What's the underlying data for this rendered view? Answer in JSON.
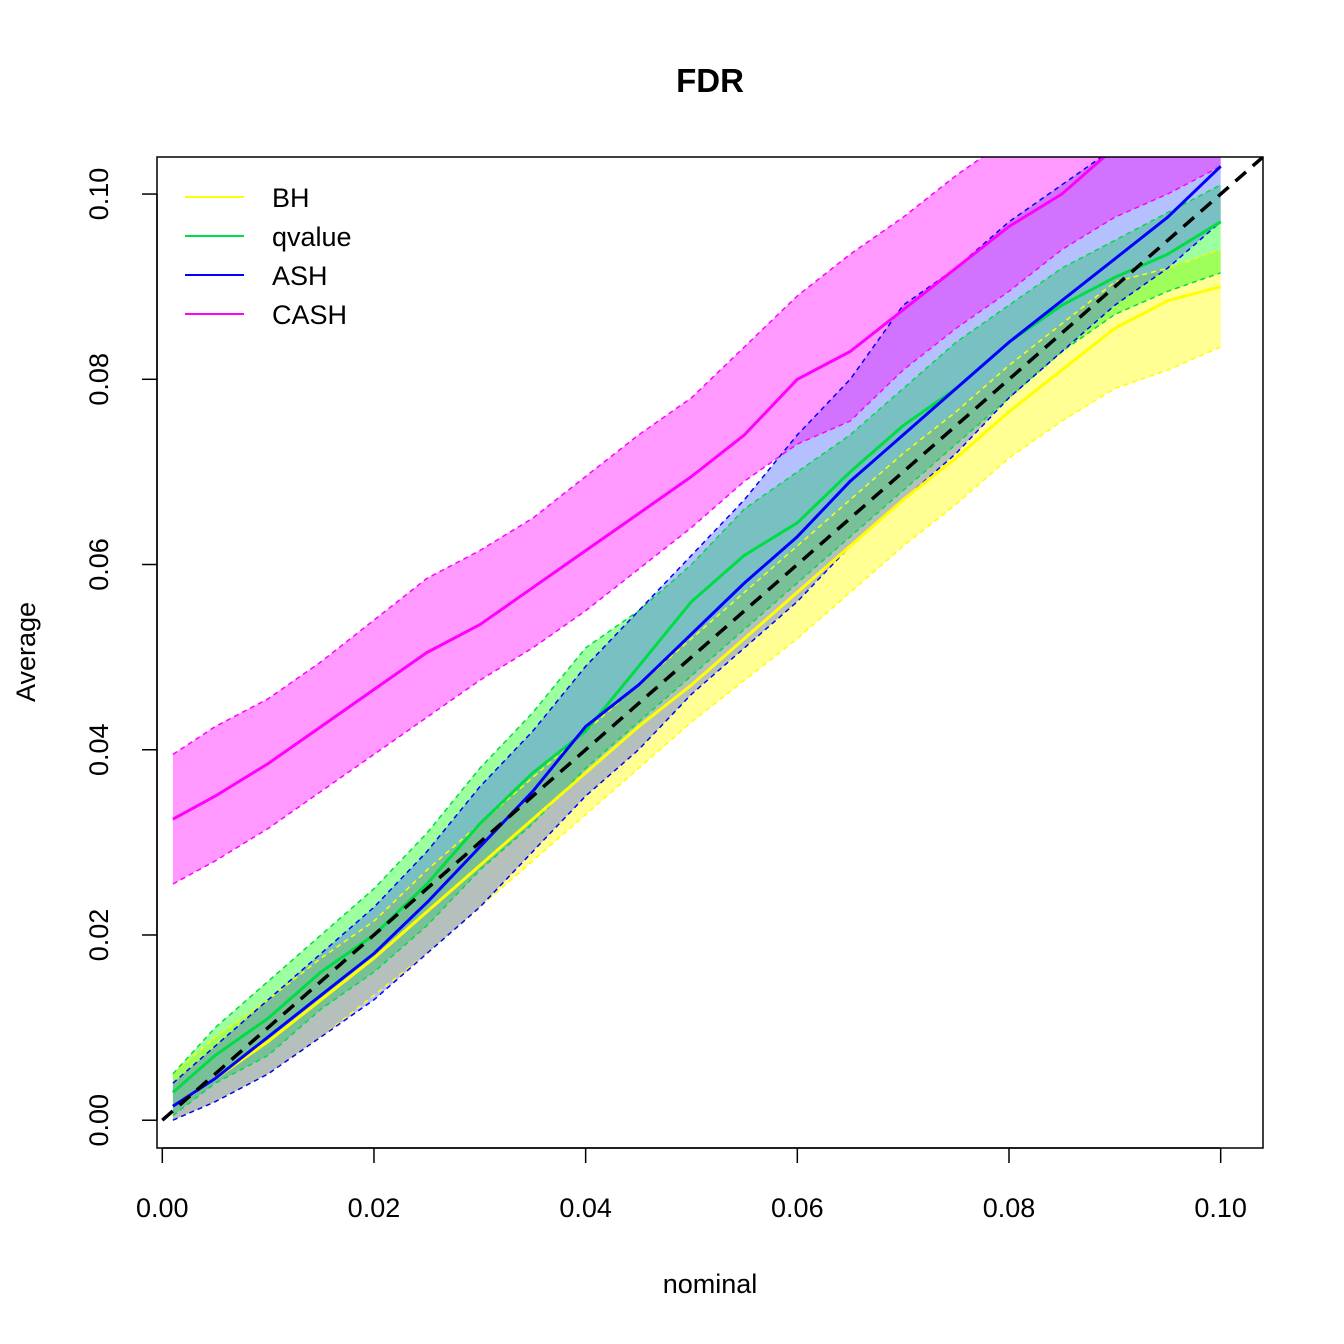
{
  "chart_data": {
    "type": "line",
    "title": "FDR",
    "xlabel": "nominal",
    "ylabel": "Average",
    "xlim": [
      -0.0005,
      0.104
    ],
    "ylim": [
      -0.003,
      0.104
    ],
    "x_ticks": [
      {
        "value": 0.0,
        "label": "0.00"
      },
      {
        "value": 0.02,
        "label": "0.02"
      },
      {
        "value": 0.04,
        "label": "0.04"
      },
      {
        "value": 0.06,
        "label": "0.06"
      },
      {
        "value": 0.08,
        "label": "0.08"
      },
      {
        "value": 0.1,
        "label": "0.10"
      }
    ],
    "y_ticks": [
      {
        "value": 0.0,
        "label": "0.00"
      },
      {
        "value": 0.02,
        "label": "0.02"
      },
      {
        "value": 0.04,
        "label": "0.04"
      },
      {
        "value": 0.06,
        "label": "0.06"
      },
      {
        "value": 0.08,
        "label": "0.08"
      },
      {
        "value": 0.1,
        "label": "0.10"
      }
    ],
    "legend_position": "top-left",
    "x": [
      0.001,
      0.005,
      0.01,
      0.015,
      0.02,
      0.025,
      0.03,
      0.035,
      0.04,
      0.045,
      0.05,
      0.055,
      0.06,
      0.065,
      0.07,
      0.075,
      0.08,
      0.085,
      0.09,
      0.095,
      0.1
    ],
    "reference_line": {
      "from": [
        0,
        0
      ],
      "to": [
        0.104,
        0.104
      ],
      "style": "dashed",
      "color": "#000000"
    },
    "series": [
      {
        "name": "BH",
        "color": "#ffff00",
        "band_fill": "rgba(255,255,0,0.42)",
        "mean": [
          0.0015,
          0.0045,
          0.0085,
          0.013,
          0.0175,
          0.0225,
          0.0275,
          0.0325,
          0.0375,
          0.0425,
          0.047,
          0.052,
          0.057,
          0.062,
          0.067,
          0.0715,
          0.0765,
          0.081,
          0.0855,
          0.0885,
          0.09
        ],
        "upper": [
          0.005,
          0.009,
          0.013,
          0.0175,
          0.0215,
          0.027,
          0.032,
          0.037,
          0.042,
          0.047,
          0.052,
          0.057,
          0.062,
          0.067,
          0.072,
          0.0765,
          0.0815,
          0.086,
          0.0905,
          0.092,
          0.094
        ],
        "lower": [
          0.0,
          0.002,
          0.005,
          0.009,
          0.0135,
          0.018,
          0.023,
          0.028,
          0.033,
          0.038,
          0.043,
          0.0475,
          0.052,
          0.057,
          0.062,
          0.0665,
          0.0715,
          0.0755,
          0.079,
          0.081,
          0.0835
        ]
      },
      {
        "name": "qvalue",
        "color": "#00dd44",
        "band_fill": "rgba(0,255,0,0.38)",
        "mean": [
          0.003,
          0.007,
          0.011,
          0.016,
          0.02,
          0.0255,
          0.032,
          0.0375,
          0.042,
          0.049,
          0.056,
          0.061,
          0.0645,
          0.07,
          0.075,
          0.079,
          0.084,
          0.088,
          0.091,
          0.0935,
          0.097
        ],
        "upper": [
          0.005,
          0.01,
          0.015,
          0.02,
          0.025,
          0.031,
          0.038,
          0.044,
          0.051,
          0.055,
          0.06,
          0.066,
          0.07,
          0.074,
          0.079,
          0.084,
          0.088,
          0.092,
          0.095,
          0.098,
          0.101
        ],
        "lower": [
          0.0005,
          0.004,
          0.007,
          0.012,
          0.016,
          0.021,
          0.027,
          0.032,
          0.038,
          0.043,
          0.048,
          0.053,
          0.058,
          0.063,
          0.068,
          0.073,
          0.078,
          0.083,
          0.087,
          0.0895,
          0.0915
        ]
      },
      {
        "name": "ASH",
        "color": "#0000ff",
        "band_fill": "rgba(60,90,255,0.38)",
        "mean": [
          0.0015,
          0.0045,
          0.009,
          0.0135,
          0.018,
          0.0235,
          0.0295,
          0.0355,
          0.0425,
          0.047,
          0.0525,
          0.058,
          0.063,
          0.069,
          0.074,
          0.079,
          0.084,
          0.0885,
          0.093,
          0.0975,
          0.103
        ],
        "upper": [
          0.004,
          0.008,
          0.013,
          0.018,
          0.023,
          0.029,
          0.036,
          0.042,
          0.049,
          0.055,
          0.061,
          0.067,
          0.074,
          0.08,
          0.088,
          0.092,
          0.097,
          0.101,
          0.105,
          0.107,
          0.109
        ],
        "lower": [
          0.0,
          0.002,
          0.005,
          0.009,
          0.013,
          0.018,
          0.023,
          0.029,
          0.035,
          0.04,
          0.046,
          0.051,
          0.056,
          0.062,
          0.067,
          0.072,
          0.078,
          0.083,
          0.088,
          0.092,
          0.097
        ]
      },
      {
        "name": "CASH",
        "color": "#ff00ff",
        "band_fill": "rgba(255,0,255,0.40)",
        "mean": [
          0.0325,
          0.035,
          0.0385,
          0.0425,
          0.0465,
          0.0505,
          0.0535,
          0.0575,
          0.0615,
          0.0655,
          0.0695,
          0.074,
          0.08,
          0.083,
          0.0875,
          0.092,
          0.0965,
          0.1,
          0.105,
          0.108,
          0.11
        ],
        "upper": [
          0.0395,
          0.0425,
          0.0455,
          0.0495,
          0.054,
          0.0585,
          0.0615,
          0.065,
          0.0695,
          0.074,
          0.078,
          0.0835,
          0.089,
          0.0935,
          0.0975,
          0.102,
          0.106,
          0.109,
          0.11,
          0.11,
          0.11
        ],
        "lower": [
          0.0255,
          0.028,
          0.0315,
          0.0355,
          0.0395,
          0.0435,
          0.0475,
          0.051,
          0.055,
          0.0595,
          0.064,
          0.069,
          0.073,
          0.0755,
          0.081,
          0.0855,
          0.0895,
          0.094,
          0.0975,
          0.1,
          0.103
        ]
      }
    ]
  }
}
